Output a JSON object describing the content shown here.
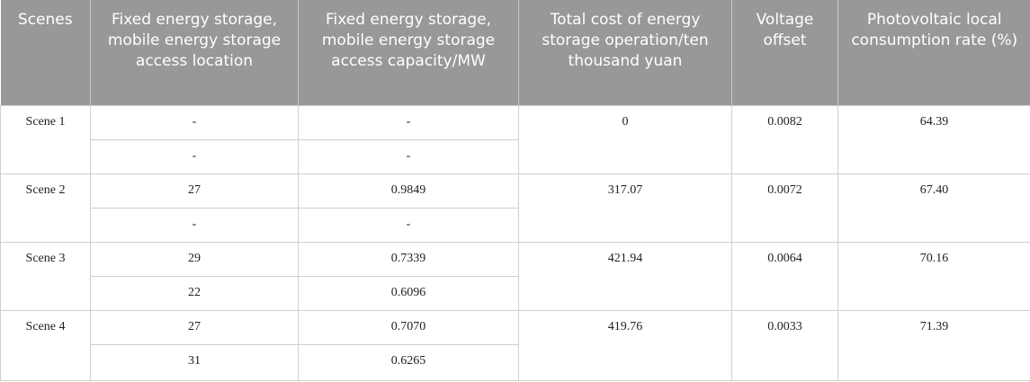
{
  "headers": [
    "Scenes",
    "Fixed energy storage, mobile energy storage access location",
    "Fixed energy storage, mobile energy storage access capacity/MW",
    "Total cost of energy storage operation/ten thousand yuan",
    "Voltage offset",
    "Photovoltaic local consumption rate (%)"
  ],
  "scenes": [
    {
      "name": "Scene 1",
      "rows": [
        {
          "location": "-",
          "capacity": "-"
        },
        {
          "location": "-",
          "capacity": "-"
        }
      ],
      "cost": "0",
      "voltage": "0.0082",
      "rate": "64.39"
    },
    {
      "name": "Scene 2",
      "rows": [
        {
          "location": "27",
          "capacity": "0.9849"
        },
        {
          "location": "-",
          "capacity": "-"
        }
      ],
      "cost": "317.07",
      "voltage": "0.0072",
      "rate": "67.40"
    },
    {
      "name": "Scene 3",
      "rows": [
        {
          "location": "29",
          "capacity": "0.7339"
        },
        {
          "location": "22",
          "capacity": "0.6096"
        }
      ],
      "cost": "421.94",
      "voltage": "0.0064",
      "rate": "70.16"
    },
    {
      "name": "Scene 4",
      "rows": [
        {
          "location": "27",
          "capacity": "0.7070"
        },
        {
          "location": "31",
          "capacity": "0.6265"
        }
      ],
      "cost": "419.76",
      "voltage": "0.0033",
      "rate": "71.39"
    }
  ]
}
